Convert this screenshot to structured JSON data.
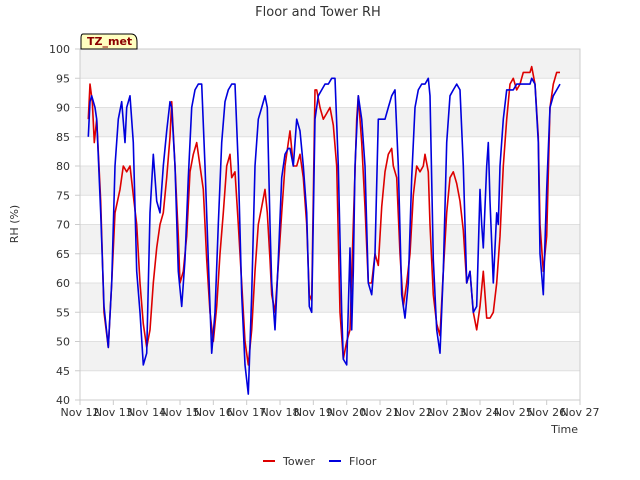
{
  "chart_data": {
    "type": "line",
    "title": "Floor and Tower RH",
    "xlabel": "Time",
    "ylabel": "RH (%)",
    "ylim": [
      40,
      100
    ],
    "yticks": [
      40,
      45,
      50,
      55,
      60,
      65,
      70,
      75,
      80,
      85,
      90,
      95,
      100
    ],
    "xlim": [
      12,
      27
    ],
    "xticks": [
      {
        "x": 12,
        "label": "Nov 12"
      },
      {
        "x": 13,
        "label": "Nov 13"
      },
      {
        "x": 14,
        "label": "Nov 14"
      },
      {
        "x": 15,
        "label": "Nov 15"
      },
      {
        "x": 16,
        "label": "Nov 16"
      },
      {
        "x": 17,
        "label": "Nov 17"
      },
      {
        "x": 18,
        "label": "Nov 18"
      },
      {
        "x": 19,
        "label": "Nov 19"
      },
      {
        "x": 20,
        "label": "Nov 20"
      },
      {
        "x": 21,
        "label": "Nov 21"
      },
      {
        "x": 22,
        "label": "Nov 22"
      },
      {
        "x": 23,
        "label": "Nov 23"
      },
      {
        "x": 24,
        "label": "Nov 24"
      },
      {
        "x": 25,
        "label": "Nov 25"
      },
      {
        "x": 26,
        "label": "Nov 26"
      },
      {
        "x": 27,
        "label": "Nov 27"
      }
    ],
    "grid": true,
    "legend_position": "bottom-center",
    "annotation": "TZ_met",
    "series": [
      {
        "name": "Tower",
        "color": "#dd0000",
        "points": [
          [
            12.25,
            88
          ],
          [
            12.3,
            94
          ],
          [
            12.37,
            91
          ],
          [
            12.43,
            84
          ],
          [
            12.5,
            88
          ],
          [
            12.62,
            74
          ],
          [
            12.72,
            55
          ],
          [
            12.85,
            49
          ],
          [
            12.95,
            60
          ],
          [
            13.05,
            72
          ],
          [
            13.2,
            76
          ],
          [
            13.3,
            80
          ],
          [
            13.4,
            79
          ],
          [
            13.5,
            80
          ],
          [
            13.6,
            75
          ],
          [
            13.7,
            70
          ],
          [
            13.8,
            60
          ],
          [
            13.9,
            53
          ],
          [
            14.0,
            49
          ],
          [
            14.1,
            52
          ],
          [
            14.2,
            60
          ],
          [
            14.3,
            66
          ],
          [
            14.4,
            70
          ],
          [
            14.5,
            72
          ],
          [
            14.6,
            78
          ],
          [
            14.7,
            85
          ],
          [
            14.75,
            91
          ],
          [
            14.85,
            80
          ],
          [
            14.95,
            68
          ],
          [
            15.0,
            60
          ],
          [
            15.1,
            62
          ],
          [
            15.2,
            68
          ],
          [
            15.3,
            79
          ],
          [
            15.4,
            82
          ],
          [
            15.5,
            84
          ],
          [
            15.6,
            80
          ],
          [
            15.7,
            76
          ],
          [
            15.8,
            64
          ],
          [
            15.9,
            55
          ],
          [
            16.0,
            50
          ],
          [
            16.1,
            56
          ],
          [
            16.2,
            65
          ],
          [
            16.3,
            72
          ],
          [
            16.4,
            80
          ],
          [
            16.5,
            82
          ],
          [
            16.55,
            78
          ],
          [
            16.65,
            79
          ],
          [
            16.75,
            70
          ],
          [
            16.85,
            60
          ],
          [
            16.95,
            50
          ],
          [
            17.05,
            46
          ],
          [
            17.15,
            52
          ],
          [
            17.25,
            62
          ],
          [
            17.35,
            70
          ],
          [
            17.45,
            73
          ],
          [
            17.55,
            76
          ],
          [
            17.62,
            72
          ],
          [
            17.7,
            64
          ],
          [
            17.75,
            58
          ],
          [
            17.85,
            55
          ],
          [
            17.95,
            63
          ],
          [
            18.05,
            72
          ],
          [
            18.15,
            80
          ],
          [
            18.25,
            84
          ],
          [
            18.3,
            86
          ],
          [
            18.4,
            80
          ],
          [
            18.5,
            80
          ],
          [
            18.6,
            82
          ],
          [
            18.7,
            78
          ],
          [
            18.8,
            70
          ],
          [
            18.88,
            58
          ],
          [
            18.95,
            57
          ],
          [
            19.05,
            93
          ],
          [
            19.1,
            93
          ],
          [
            19.2,
            90
          ],
          [
            19.3,
            88
          ],
          [
            19.4,
            89
          ],
          [
            19.5,
            90
          ],
          [
            19.6,
            87
          ],
          [
            19.7,
            80
          ],
          [
            19.8,
            55
          ],
          [
            19.9,
            47
          ],
          [
            20.0,
            50
          ],
          [
            20.1,
            52
          ],
          [
            20.2,
            70
          ],
          [
            20.3,
            88
          ],
          [
            20.35,
            92
          ],
          [
            20.45,
            84
          ],
          [
            20.55,
            73
          ],
          [
            20.65,
            60
          ],
          [
            20.75,
            60
          ],
          [
            20.85,
            65
          ],
          [
            20.95,
            63
          ],
          [
            21.05,
            73
          ],
          [
            21.15,
            79
          ],
          [
            21.25,
            82
          ],
          [
            21.35,
            83
          ],
          [
            21.4,
            80
          ],
          [
            21.5,
            78
          ],
          [
            21.6,
            65
          ],
          [
            21.7,
            56
          ],
          [
            21.8,
            60
          ],
          [
            21.9,
            65
          ],
          [
            22.0,
            75
          ],
          [
            22.1,
            80
          ],
          [
            22.2,
            79
          ],
          [
            22.3,
            80
          ],
          [
            22.35,
            82
          ],
          [
            22.45,
            79
          ],
          [
            22.5,
            70
          ],
          [
            22.6,
            58
          ],
          [
            22.7,
            53
          ],
          [
            22.8,
            51
          ],
          [
            22.9,
            62
          ],
          [
            23.0,
            72
          ],
          [
            23.1,
            78
          ],
          [
            23.2,
            79
          ],
          [
            23.3,
            77
          ],
          [
            23.4,
            74
          ],
          [
            23.5,
            69
          ],
          [
            23.6,
            60
          ],
          [
            23.7,
            62
          ],
          [
            23.8,
            55
          ],
          [
            23.9,
            52
          ],
          [
            24.0,
            56
          ],
          [
            24.1,
            62
          ],
          [
            24.2,
            54
          ],
          [
            24.3,
            54
          ],
          [
            24.4,
            55
          ],
          [
            24.5,
            60
          ],
          [
            24.6,
            68
          ],
          [
            24.7,
            80
          ],
          [
            24.8,
            88
          ],
          [
            24.9,
            94
          ],
          [
            25.0,
            95
          ],
          [
            25.1,
            93
          ],
          [
            25.2,
            94
          ],
          [
            25.3,
            96
          ],
          [
            25.4,
            96
          ],
          [
            25.5,
            96
          ],
          [
            25.55,
            97
          ],
          [
            25.65,
            94
          ],
          [
            25.75,
            85
          ],
          [
            25.8,
            70
          ],
          [
            25.9,
            62
          ],
          [
            26.0,
            68
          ],
          [
            26.1,
            90
          ],
          [
            26.2,
            94
          ],
          [
            26.3,
            96
          ],
          [
            26.4,
            96
          ]
        ]
      },
      {
        "name": "Floor",
        "color": "#0000dd",
        "points": [
          [
            12.25,
            85
          ],
          [
            12.3,
            91
          ],
          [
            12.35,
            92
          ],
          [
            12.45,
            90
          ],
          [
            12.5,
            88
          ],
          [
            12.62,
            72
          ],
          [
            12.72,
            56
          ],
          [
            12.85,
            49
          ],
          [
            12.95,
            60
          ],
          [
            13.05,
            80
          ],
          [
            13.15,
            88
          ],
          [
            13.25,
            91
          ],
          [
            13.35,
            84
          ],
          [
            13.4,
            90
          ],
          [
            13.5,
            92
          ],
          [
            13.6,
            84
          ],
          [
            13.7,
            62
          ],
          [
            13.8,
            55
          ],
          [
            13.9,
            46
          ],
          [
            14.0,
            48
          ],
          [
            14.1,
            72
          ],
          [
            14.2,
            82
          ],
          [
            14.3,
            74
          ],
          [
            14.4,
            72
          ],
          [
            14.5,
            80
          ],
          [
            14.6,
            86
          ],
          [
            14.7,
            91
          ],
          [
            14.75,
            90
          ],
          [
            14.85,
            80
          ],
          [
            14.95,
            62
          ],
          [
            15.05,
            56
          ],
          [
            15.15,
            64
          ],
          [
            15.25,
            78
          ],
          [
            15.35,
            90
          ],
          [
            15.45,
            93
          ],
          [
            15.55,
            94
          ],
          [
            15.65,
            94
          ],
          [
            15.75,
            80
          ],
          [
            15.85,
            64
          ],
          [
            15.95,
            48
          ],
          [
            16.05,
            55
          ],
          [
            16.15,
            70
          ],
          [
            16.25,
            84
          ],
          [
            16.35,
            91
          ],
          [
            16.45,
            93
          ],
          [
            16.55,
            94
          ],
          [
            16.65,
            94
          ],
          [
            16.75,
            80
          ],
          [
            16.85,
            58
          ],
          [
            16.95,
            46
          ],
          [
            17.05,
            41
          ],
          [
            17.15,
            58
          ],
          [
            17.25,
            80
          ],
          [
            17.35,
            88
          ],
          [
            17.45,
            90
          ],
          [
            17.55,
            92
          ],
          [
            17.62,
            90
          ],
          [
            17.7,
            70
          ],
          [
            17.75,
            60
          ],
          [
            17.85,
            52
          ],
          [
            17.95,
            64
          ],
          [
            18.05,
            78
          ],
          [
            18.15,
            82
          ],
          [
            18.25,
            83
          ],
          [
            18.3,
            83
          ],
          [
            18.4,
            80
          ],
          [
            18.5,
            88
          ],
          [
            18.6,
            86
          ],
          [
            18.7,
            80
          ],
          [
            18.8,
            72
          ],
          [
            18.88,
            56
          ],
          [
            18.95,
            55
          ],
          [
            19.05,
            88
          ],
          [
            19.15,
            92
          ],
          [
            19.25,
            93
          ],
          [
            19.35,
            94
          ],
          [
            19.45,
            94
          ],
          [
            19.55,
            95
          ],
          [
            19.65,
            95
          ],
          [
            19.75,
            80
          ],
          [
            19.85,
            55
          ],
          [
            19.9,
            47
          ],
          [
            20.0,
            46
          ],
          [
            20.1,
            66
          ],
          [
            20.15,
            52
          ],
          [
            20.2,
            62
          ],
          [
            20.25,
            80
          ],
          [
            20.35,
            92
          ],
          [
            20.45,
            88
          ],
          [
            20.55,
            80
          ],
          [
            20.65,
            60
          ],
          [
            20.75,
            58
          ],
          [
            20.85,
            65
          ],
          [
            20.95,
            88
          ],
          [
            21.05,
            88
          ],
          [
            21.15,
            88
          ],
          [
            21.25,
            90
          ],
          [
            21.35,
            92
          ],
          [
            21.45,
            93
          ],
          [
            21.55,
            80
          ],
          [
            21.65,
            58
          ],
          [
            21.75,
            54
          ],
          [
            21.85,
            60
          ],
          [
            21.95,
            78
          ],
          [
            22.05,
            90
          ],
          [
            22.15,
            93
          ],
          [
            22.25,
            94
          ],
          [
            22.35,
            94
          ],
          [
            22.45,
            95
          ],
          [
            22.5,
            92
          ],
          [
            22.6,
            64
          ],
          [
            22.7,
            52
          ],
          [
            22.8,
            48
          ],
          [
            22.9,
            62
          ],
          [
            23.0,
            84
          ],
          [
            23.1,
            92
          ],
          [
            23.2,
            93
          ],
          [
            23.3,
            94
          ],
          [
            23.4,
            93
          ],
          [
            23.5,
            80
          ],
          [
            23.6,
            60
          ],
          [
            23.7,
            62
          ],
          [
            23.8,
            55
          ],
          [
            23.9,
            56
          ],
          [
            24.0,
            76
          ],
          [
            24.05,
            70
          ],
          [
            24.1,
            66
          ],
          [
            24.2,
            80
          ],
          [
            24.25,
            84
          ],
          [
            24.3,
            74
          ],
          [
            24.4,
            60
          ],
          [
            24.5,
            72
          ],
          [
            24.55,
            70
          ],
          [
            24.6,
            80
          ],
          [
            24.7,
            88
          ],
          [
            24.8,
            93
          ],
          [
            24.9,
            93
          ],
          [
            25.0,
            93
          ],
          [
            25.1,
            94
          ],
          [
            25.2,
            94
          ],
          [
            25.3,
            94
          ],
          [
            25.4,
            94
          ],
          [
            25.5,
            94
          ],
          [
            25.55,
            95
          ],
          [
            25.65,
            94
          ],
          [
            25.75,
            84
          ],
          [
            25.8,
            65
          ],
          [
            25.9,
            58
          ],
          [
            26.0,
            76
          ],
          [
            26.1,
            90
          ],
          [
            26.2,
            92
          ],
          [
            26.3,
            93
          ],
          [
            26.4,
            94
          ]
        ]
      }
    ]
  }
}
